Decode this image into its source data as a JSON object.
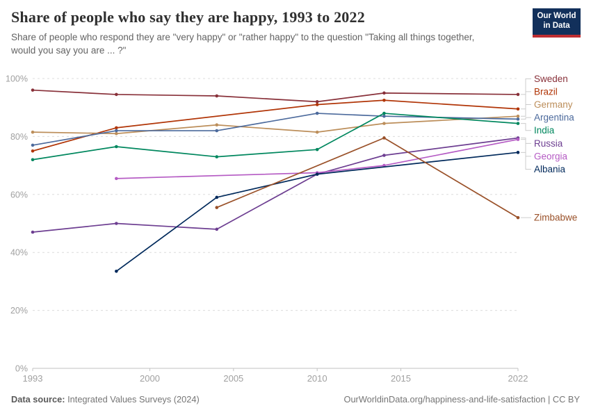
{
  "header": {
    "logo_line1": "Our World",
    "logo_line2": "in Data",
    "logo_bg": "#12305B",
    "logo_accent": "#BE2E32"
  },
  "footer": {
    "datasource_label": "Data source:",
    "datasource_value": " Integrated Values Surveys (2024)",
    "url": "OurWorldinData.org/happiness-and-life-satisfaction",
    "separator": " | ",
    "license": "CC BY"
  },
  "chart_data": {
    "type": "line",
    "title": "Share of people who say they are happy, 1993 to 2022",
    "subtitle": "Share of people who respond they are \"very happy\" or \"rather happy\" to the question \"Taking all things together, would you say you are ... ?\"",
    "x_range": [
      1993,
      2022
    ],
    "y_range": [
      0,
      100
    ],
    "x_ticks": [
      1993,
      2000,
      2005,
      2010,
      2015,
      2022
    ],
    "y_ticks": [
      0,
      20,
      40,
      60,
      80,
      100
    ],
    "y_tick_suffix": "%",
    "grid": "dashed",
    "legend_position": "right",
    "grid_color": "#dcdcdc",
    "axis_color": "#c2c2c2",
    "tick_label_color": "#a0a0a0",
    "connector_color": "#cccccc",
    "series": [
      {
        "name": "Sweden",
        "color": "#883039",
        "points": [
          [
            1993,
            96
          ],
          [
            1998,
            94.5
          ],
          [
            2004,
            94
          ],
          [
            2010,
            92
          ],
          [
            2014,
            95
          ],
          [
            2022,
            94.5
          ]
        ]
      },
      {
        "name": "Brazil",
        "color": "#B13507",
        "points": [
          [
            1993,
            75
          ],
          [
            1998,
            83
          ],
          [
            2010,
            91
          ],
          [
            2014,
            92.5
          ],
          [
            2022,
            89.5
          ]
        ]
      },
      {
        "name": "Germany",
        "color": "#BC8E5A",
        "points": [
          [
            1993,
            81.5
          ],
          [
            1998,
            81
          ],
          [
            2004,
            84
          ],
          [
            2010,
            81.5
          ],
          [
            2014,
            84.5
          ],
          [
            2022,
            87
          ]
        ]
      },
      {
        "name": "Argentina",
        "color": "#4C6A9C",
        "points": [
          [
            1993,
            77
          ],
          [
            1998,
            82
          ],
          [
            2004,
            82
          ],
          [
            2010,
            88
          ],
          [
            2014,
            87
          ],
          [
            2022,
            86
          ]
        ]
      },
      {
        "name": "India",
        "color": "#00875E",
        "points": [
          [
            1993,
            72
          ],
          [
            1998,
            76.5
          ],
          [
            2004,
            73
          ],
          [
            2010,
            75.5
          ],
          [
            2014,
            88
          ],
          [
            2022,
            84.5
          ]
        ]
      },
      {
        "name": "Russia",
        "color": "#6D3E91",
        "points": [
          [
            1993,
            47
          ],
          [
            1998,
            50
          ],
          [
            2004,
            48
          ],
          [
            2010,
            67
          ],
          [
            2014,
            73.5
          ],
          [
            2022,
            79.5
          ]
        ]
      },
      {
        "name": "Georgia",
        "color": "#B55BC4",
        "points": [
          [
            1998,
            65.5
          ],
          [
            2010,
            67.5
          ],
          [
            2014,
            70
          ],
          [
            2022,
            79
          ]
        ]
      },
      {
        "name": "Albania",
        "color": "#00295B",
        "points": [
          [
            1998,
            33.5
          ],
          [
            2004,
            59
          ],
          [
            2010,
            67
          ],
          [
            2022,
            74.5
          ]
        ]
      },
      {
        "name": "Zimbabwe",
        "color": "#9A5129",
        "points": [
          [
            2004,
            55.5
          ],
          [
            2014,
            79.5
          ],
          [
            2022,
            52
          ]
        ]
      }
    ]
  }
}
